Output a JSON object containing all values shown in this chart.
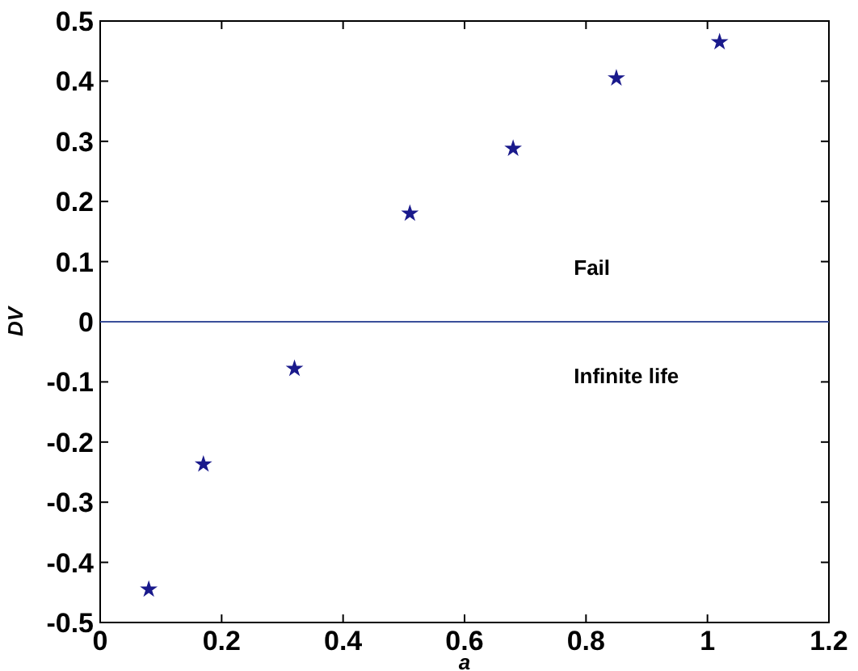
{
  "chart_data": {
    "type": "scatter",
    "xlabel": "a",
    "ylabel": "DV",
    "x": [
      0.08,
      0.17,
      0.32,
      0.51,
      0.68,
      0.85,
      1.02
    ],
    "series": [
      {
        "color": "#1a1a8c",
        "values": [
          -0.445,
          -0.237,
          -0.078,
          0.18,
          0.288,
          0.405,
          0.465
        ]
      }
    ],
    "xlim": [
      0,
      1.2
    ],
    "xticks": [
      0,
      0.2,
      0.4,
      0.6,
      0.8,
      1,
      1.2
    ],
    "ylim": [
      -0.5,
      0.5
    ],
    "yticks": [
      -0.5,
      -0.4,
      -0.3,
      -0.2,
      -0.1,
      0,
      0.1,
      0.2,
      0.3,
      0.4,
      0.5
    ],
    "ref_lines": [
      {
        "axis": "y",
        "value": 0,
        "color": "#3a4f9a"
      }
    ],
    "annotations": [
      "Fail",
      "Infinite life"
    ],
    "marker": "star",
    "grid": false
  }
}
